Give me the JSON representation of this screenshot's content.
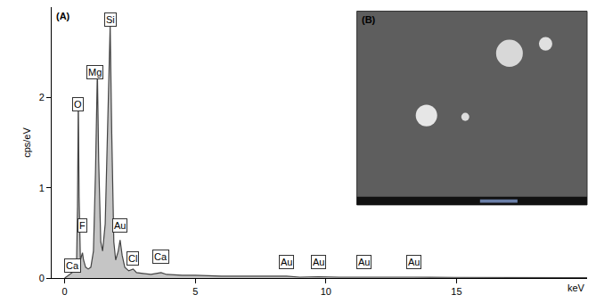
{
  "chart_data": {
    "type": "line",
    "panel_label": "(A)",
    "inset_label": "(B)",
    "x_label": "keV",
    "y_label": "cps/eV",
    "color": "#444444",
    "x": [
      0.0,
      0.1,
      0.2,
      0.28,
      0.34,
      0.4,
      0.45,
      0.49,
      0.52,
      0.55,
      0.6,
      0.66,
      0.68,
      0.72,
      0.8,
      0.9,
      1.0,
      1.1,
      1.18,
      1.25,
      1.3,
      1.38,
      1.45,
      1.55,
      1.65,
      1.74,
      1.8,
      1.88,
      1.95,
      2.05,
      2.12,
      2.2,
      2.3,
      2.45,
      2.62,
      2.75,
      3.0,
      3.3,
      3.69,
      3.9,
      4.5,
      5.0,
      6.0,
      7.0,
      8.0,
      8.49,
      9.0,
      9.71,
      10.5,
      11.44,
      12.0,
      13.38,
      14.0,
      16.0,
      18.0,
      20.0
    ],
    "values": [
      0.0,
      0.02,
      0.04,
      0.06,
      0.12,
      0.06,
      0.1,
      0.8,
      2.0,
      0.9,
      0.2,
      0.25,
      0.28,
      0.2,
      0.12,
      0.1,
      0.12,
      0.3,
      1.2,
      2.3,
      1.3,
      0.4,
      0.3,
      0.6,
      1.8,
      2.8,
      1.6,
      0.4,
      0.2,
      0.3,
      0.42,
      0.25,
      0.12,
      0.08,
      0.1,
      0.06,
      0.05,
      0.04,
      0.06,
      0.04,
      0.03,
      0.03,
      0.02,
      0.02,
      0.015,
      0.02,
      0.01,
      0.015,
      0.01,
      0.012,
      0.01,
      0.01,
      0.008,
      0.005,
      0.005,
      0.004
    ],
    "xlim": [
      -0.5,
      20
    ],
    "xticks": [
      0,
      5,
      10,
      15
    ],
    "ylim": [
      0,
      3
    ],
    "yticks": [
      0,
      1,
      2
    ],
    "grid": false,
    "annotations": [
      {
        "text": "Ca",
        "x": 0.3,
        "y": 0.06
      },
      {
        "text": "F",
        "x": 0.68,
        "y": 0.5
      },
      {
        "text": "O",
        "x": 0.5,
        "y": 1.85
      },
      {
        "text": "Mg",
        "x": 1.15,
        "y": 2.2
      },
      {
        "text": "Si",
        "x": 1.74,
        "y": 2.78
      },
      {
        "text": "Au",
        "x": 2.12,
        "y": 0.5
      },
      {
        "text": "Cl",
        "x": 2.62,
        "y": 0.14
      },
      {
        "text": "Ca",
        "x": 3.69,
        "y": 0.16
      },
      {
        "text": "Au",
        "x": 8.49,
        "y": 0.1
      },
      {
        "text": "Au",
        "x": 9.71,
        "y": 0.1
      },
      {
        "text": "Au",
        "x": 11.44,
        "y": 0.1
      },
      {
        "text": "Au",
        "x": 13.38,
        "y": 0.1
      }
    ]
  }
}
